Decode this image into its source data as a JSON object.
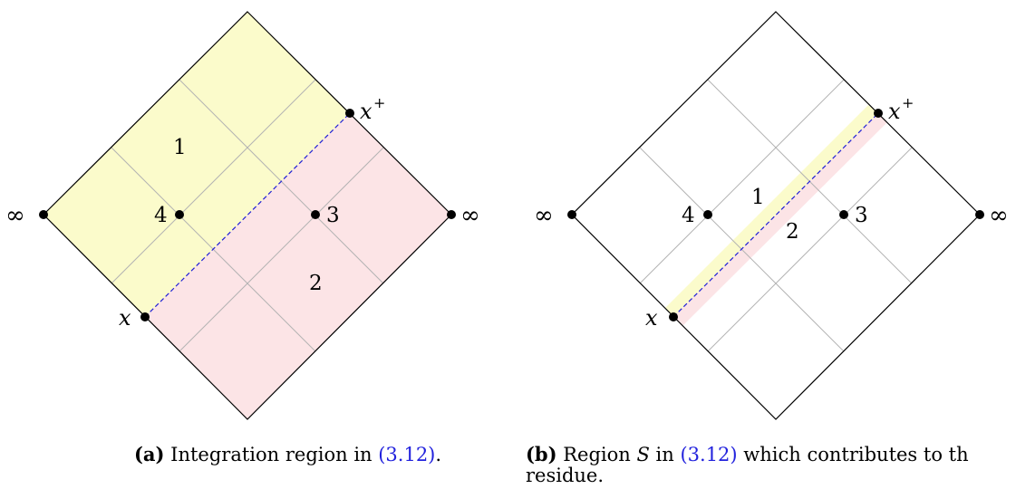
{
  "colors": {
    "region_1": "#fbfbcb",
    "region_2": "#fce4e6",
    "grid": "#b3b3b3",
    "dashed_line": "#1f1fd6",
    "reference": "#2222dd"
  },
  "diagrams": [
    {
      "id": "a",
      "labels": {
        "inf_left": "∞",
        "inf_right": "∞",
        "x": "x",
        "x_plus": "x",
        "x_plus_sup": "+",
        "point_3": "3",
        "point_4": "4",
        "region_1": "1",
        "region_2": "2"
      },
      "caption": {
        "tag": "(a)",
        "text_before": " Integration region in ",
        "ref": "(3.12)",
        "text_after": "."
      }
    },
    {
      "id": "b",
      "labels": {
        "inf_left": "∞",
        "inf_right": "∞",
        "x": "x",
        "x_plus": "x",
        "x_plus_sup": "+",
        "point_3": "3",
        "point_4": "4",
        "region_1": "1",
        "region_2": "2"
      },
      "caption": {
        "tag": "(b)",
        "text_before": " Region ",
        "symbol": "S",
        "text_mid": " in ",
        "ref": "(3.12)",
        "text_after": " which contributes to th",
        "line2": "residue."
      }
    }
  ]
}
